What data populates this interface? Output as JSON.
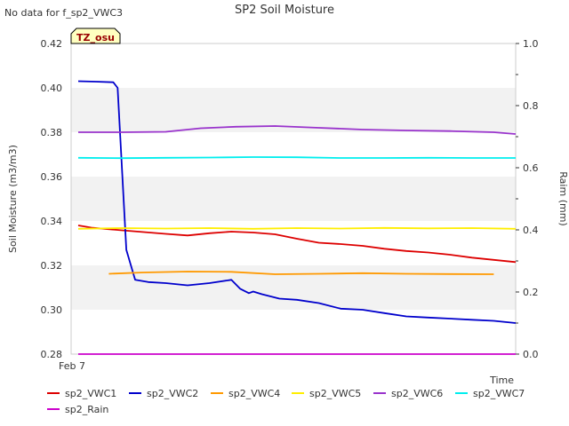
{
  "notice": "No data for f_sp2_VWC3",
  "chart_data": {
    "type": "line",
    "title": "SP2 Soil Moisture",
    "xlabel": "Time",
    "ylabel": "Soil Moisture (m3/m3)",
    "y2label": "Raim (mm)",
    "badge": "TZ_osu",
    "x_tick_labels": [
      "Feb 7"
    ],
    "ylim": [
      0.28,
      0.42
    ],
    "y_ticks": [
      "0.28",
      "0.30",
      "0.32",
      "0.34",
      "0.36",
      "0.38",
      "0.40",
      "0.42"
    ],
    "y2lim": [
      0.0,
      1.0
    ],
    "y2_ticks": [
      "0.0",
      "0.2",
      "0.4",
      "0.6",
      "0.8",
      "1.0"
    ],
    "xlim": [
      0,
      100
    ],
    "grid": "horizontal bands",
    "legend_position": "bottom",
    "series": [
      {
        "name": "sp2_VWC1",
        "color": "#dd0000",
        "axis": "left",
        "x": [
          0,
          3,
          6,
          10,
          15,
          20,
          25,
          30,
          35,
          40,
          45,
          50,
          55,
          60,
          65,
          70,
          75,
          80,
          85,
          90,
          95,
          100
        ],
        "y": [
          0.338,
          0.337,
          0.3365,
          0.3358,
          0.335,
          0.3342,
          0.3335,
          0.3345,
          0.3352,
          0.3348,
          0.334,
          0.332,
          0.3302,
          0.3296,
          0.3288,
          0.3275,
          0.3265,
          0.3258,
          0.3248,
          0.3235,
          0.3225,
          0.3215
        ]
      },
      {
        "name": "sp2_VWC2",
        "color": "#0000cc",
        "axis": "left",
        "x": [
          0,
          4,
          8,
          9,
          11,
          13,
          16,
          20,
          25,
          30,
          35,
          37,
          39,
          40,
          42,
          46,
          50,
          55,
          60,
          65,
          70,
          75,
          80,
          85,
          90,
          95,
          100
        ],
        "y": [
          0.403,
          0.4028,
          0.4025,
          0.4,
          0.327,
          0.3135,
          0.3125,
          0.312,
          0.311,
          0.312,
          0.3135,
          0.3095,
          0.3075,
          0.3082,
          0.307,
          0.305,
          0.3045,
          0.303,
          0.3005,
          0.3,
          0.2985,
          0.297,
          0.2965,
          0.296,
          0.2955,
          0.295,
          0.294
        ]
      },
      {
        "name": "sp2_VWC4",
        "color": "#ff9900",
        "axis": "left",
        "x": [
          7,
          15,
          25,
          35,
          45,
          55,
          65,
          75,
          85,
          95
        ],
        "y": [
          0.3162,
          0.3168,
          0.3172,
          0.3171,
          0.316,
          0.3162,
          0.3165,
          0.3162,
          0.3161,
          0.316
        ]
      },
      {
        "name": "sp2_VWC5",
        "color": "#ffee00",
        "axis": "left",
        "x": [
          0,
          10,
          20,
          30,
          40,
          50,
          60,
          70,
          80,
          90,
          100
        ],
        "y": [
          0.3365,
          0.3368,
          0.3366,
          0.3368,
          0.3365,
          0.3368,
          0.3366,
          0.3369,
          0.3367,
          0.3368,
          0.3365
        ]
      },
      {
        "name": "sp2_VWC6",
        "color": "#9933cc",
        "axis": "left",
        "x": [
          0,
          10,
          20,
          28,
          36,
          45,
          55,
          65,
          75,
          85,
          95,
          100
        ],
        "y": [
          0.38,
          0.38,
          0.3802,
          0.3818,
          0.3825,
          0.3828,
          0.382,
          0.3812,
          0.3808,
          0.3805,
          0.38,
          0.3792
        ]
      },
      {
        "name": "sp2_VWC7",
        "color": "#00eeee",
        "axis": "left",
        "x": [
          0,
          10,
          20,
          30,
          40,
          50,
          60,
          70,
          80,
          90,
          100
        ],
        "y": [
          0.3685,
          0.3683,
          0.3685,
          0.3686,
          0.3688,
          0.3687,
          0.3684,
          0.3684,
          0.3685,
          0.3684,
          0.3684
        ]
      },
      {
        "name": "sp2_Rain",
        "color": "#cc00cc",
        "axis": "right",
        "x": [
          0,
          100
        ],
        "y": [
          0.0,
          0.0
        ]
      }
    ]
  }
}
